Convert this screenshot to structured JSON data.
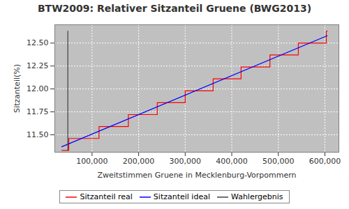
{
  "chart_data": {
    "type": "line",
    "title": "BTW2009: Relativer Sitzanteil Gruene (BWG2013)",
    "x_label": "Zweitstimmen Gruene in Mecklenburg-Vorpommern",
    "y_label": "Sitzanteil(%)",
    "series": [
      {
        "name": "Sitzanteil real",
        "color": "#ff0000",
        "line_style": "step",
        "x": [
          35000,
          50000,
          115000,
          178000,
          240000,
          300000,
          360000,
          420000,
          482000,
          543000,
          603000,
          605000
        ],
        "values": [
          11.33,
          11.46,
          11.59,
          11.72,
          11.85,
          11.98,
          12.11,
          12.24,
          12.37,
          12.5,
          12.63,
          12.63
        ]
      },
      {
        "name": "Sitzanteil ideal",
        "color": "#0000ff",
        "line_style": "solid",
        "x": [
          35000,
          605000
        ],
        "values": [
          11.37,
          12.58
        ]
      },
      {
        "name": "Wahlergebnis",
        "color": "#404040",
        "line_style": "solid",
        "x": [
          48000,
          48000
        ],
        "values": [
          11.33,
          12.63
        ]
      }
    ],
    "xlim": [
      20000,
      630000
    ],
    "xticks": [
      {
        "value": 100000,
        "label": "100,000"
      },
      {
        "value": 200000,
        "label": "200,000"
      },
      {
        "value": 300000,
        "label": "300,000"
      },
      {
        "value": 400000,
        "label": "400,000"
      },
      {
        "value": 500000,
        "label": "500,000"
      },
      {
        "value": 600000,
        "label": "600,000"
      }
    ],
    "ylim": [
      11.31,
      12.7
    ],
    "yticks": [
      {
        "value": 11.5,
        "label": "11.50"
      },
      11.75,
      {
        "value": 12,
        "label": "12.00"
      },
      12.25,
      {
        "value": 12.5,
        "label": "12.50"
      }
    ],
    "grid": true,
    "legend": "bottom"
  }
}
